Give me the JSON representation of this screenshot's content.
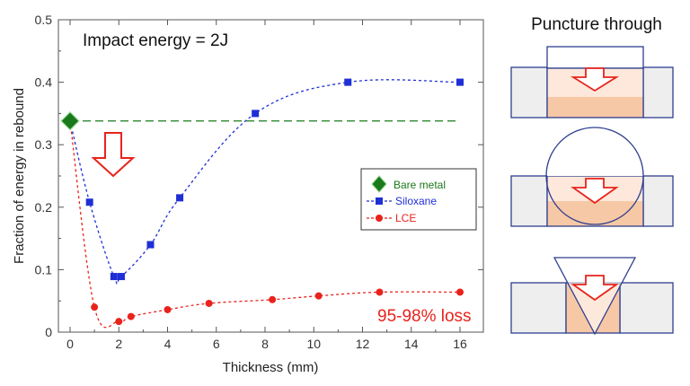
{
  "chart_data": {
    "type": "line",
    "xlabel": "Thickness (mm)",
    "ylabel": "Fraction of energy in rebound",
    "xlim": [
      0,
      17
    ],
    "ylim": [
      0,
      0.5
    ],
    "xticks": [
      0,
      2,
      4,
      6,
      8,
      10,
      12,
      14,
      16
    ],
    "yticks": [
      0,
      0.1,
      0.2,
      0.3,
      0.4,
      0.5
    ],
    "xtick_labels": [
      "0",
      "2",
      "4",
      "6",
      "8",
      "10",
      "12",
      "14",
      "16"
    ],
    "ytick_labels": [
      "0",
      "0.1",
      "0.2",
      "0.3",
      "0.4",
      "0.5"
    ],
    "grid": false,
    "legend_position": "center-right",
    "series": [
      {
        "name": "Bare metal",
        "color": "#1a7a1a",
        "marker": "diamond",
        "line_style": "long-dash",
        "points": [
          [
            0,
            0.338
          ]
        ],
        "reference_line": 0.338
      },
      {
        "name": "Siloxane",
        "color": "#1f2fd6",
        "marker": "square",
        "line_style": "dotted",
        "points": [
          [
            0,
            0.338
          ],
          [
            0.8,
            0.208
          ],
          [
            1.8,
            0.089
          ],
          [
            2.1,
            0.089
          ],
          [
            3.3,
            0.14
          ],
          [
            4.5,
            0.215
          ],
          [
            7.6,
            0.35
          ],
          [
            11.4,
            0.4
          ],
          [
            16,
            0.4
          ]
        ]
      },
      {
        "name": "LCE",
        "color": "#e8231c",
        "marker": "circle",
        "line_style": "dotted",
        "points": [
          [
            0,
            0.338
          ],
          [
            1,
            0.04
          ],
          [
            2,
            0.017
          ],
          [
            2.5,
            0.025
          ],
          [
            4,
            0.036
          ],
          [
            5.7,
            0.046
          ],
          [
            8.3,
            0.052
          ],
          [
            10.2,
            0.058
          ],
          [
            12.7,
            0.064
          ],
          [
            16,
            0.064
          ]
        ]
      }
    ],
    "annotations": {
      "impact": "Impact energy = 2J",
      "loss": "95-98% loss"
    }
  },
  "diagram": {
    "title": "Puncture through",
    "colors": {
      "outline": "#2e3f8f",
      "block": "#eeeeef",
      "fill": "#f7c8a6",
      "fill_light": "#fde8db",
      "arrow": "#e8231c"
    },
    "panels": [
      {
        "indenter": "flat-punch"
      },
      {
        "indenter": "sphere"
      },
      {
        "indenter": "cone"
      }
    ]
  }
}
